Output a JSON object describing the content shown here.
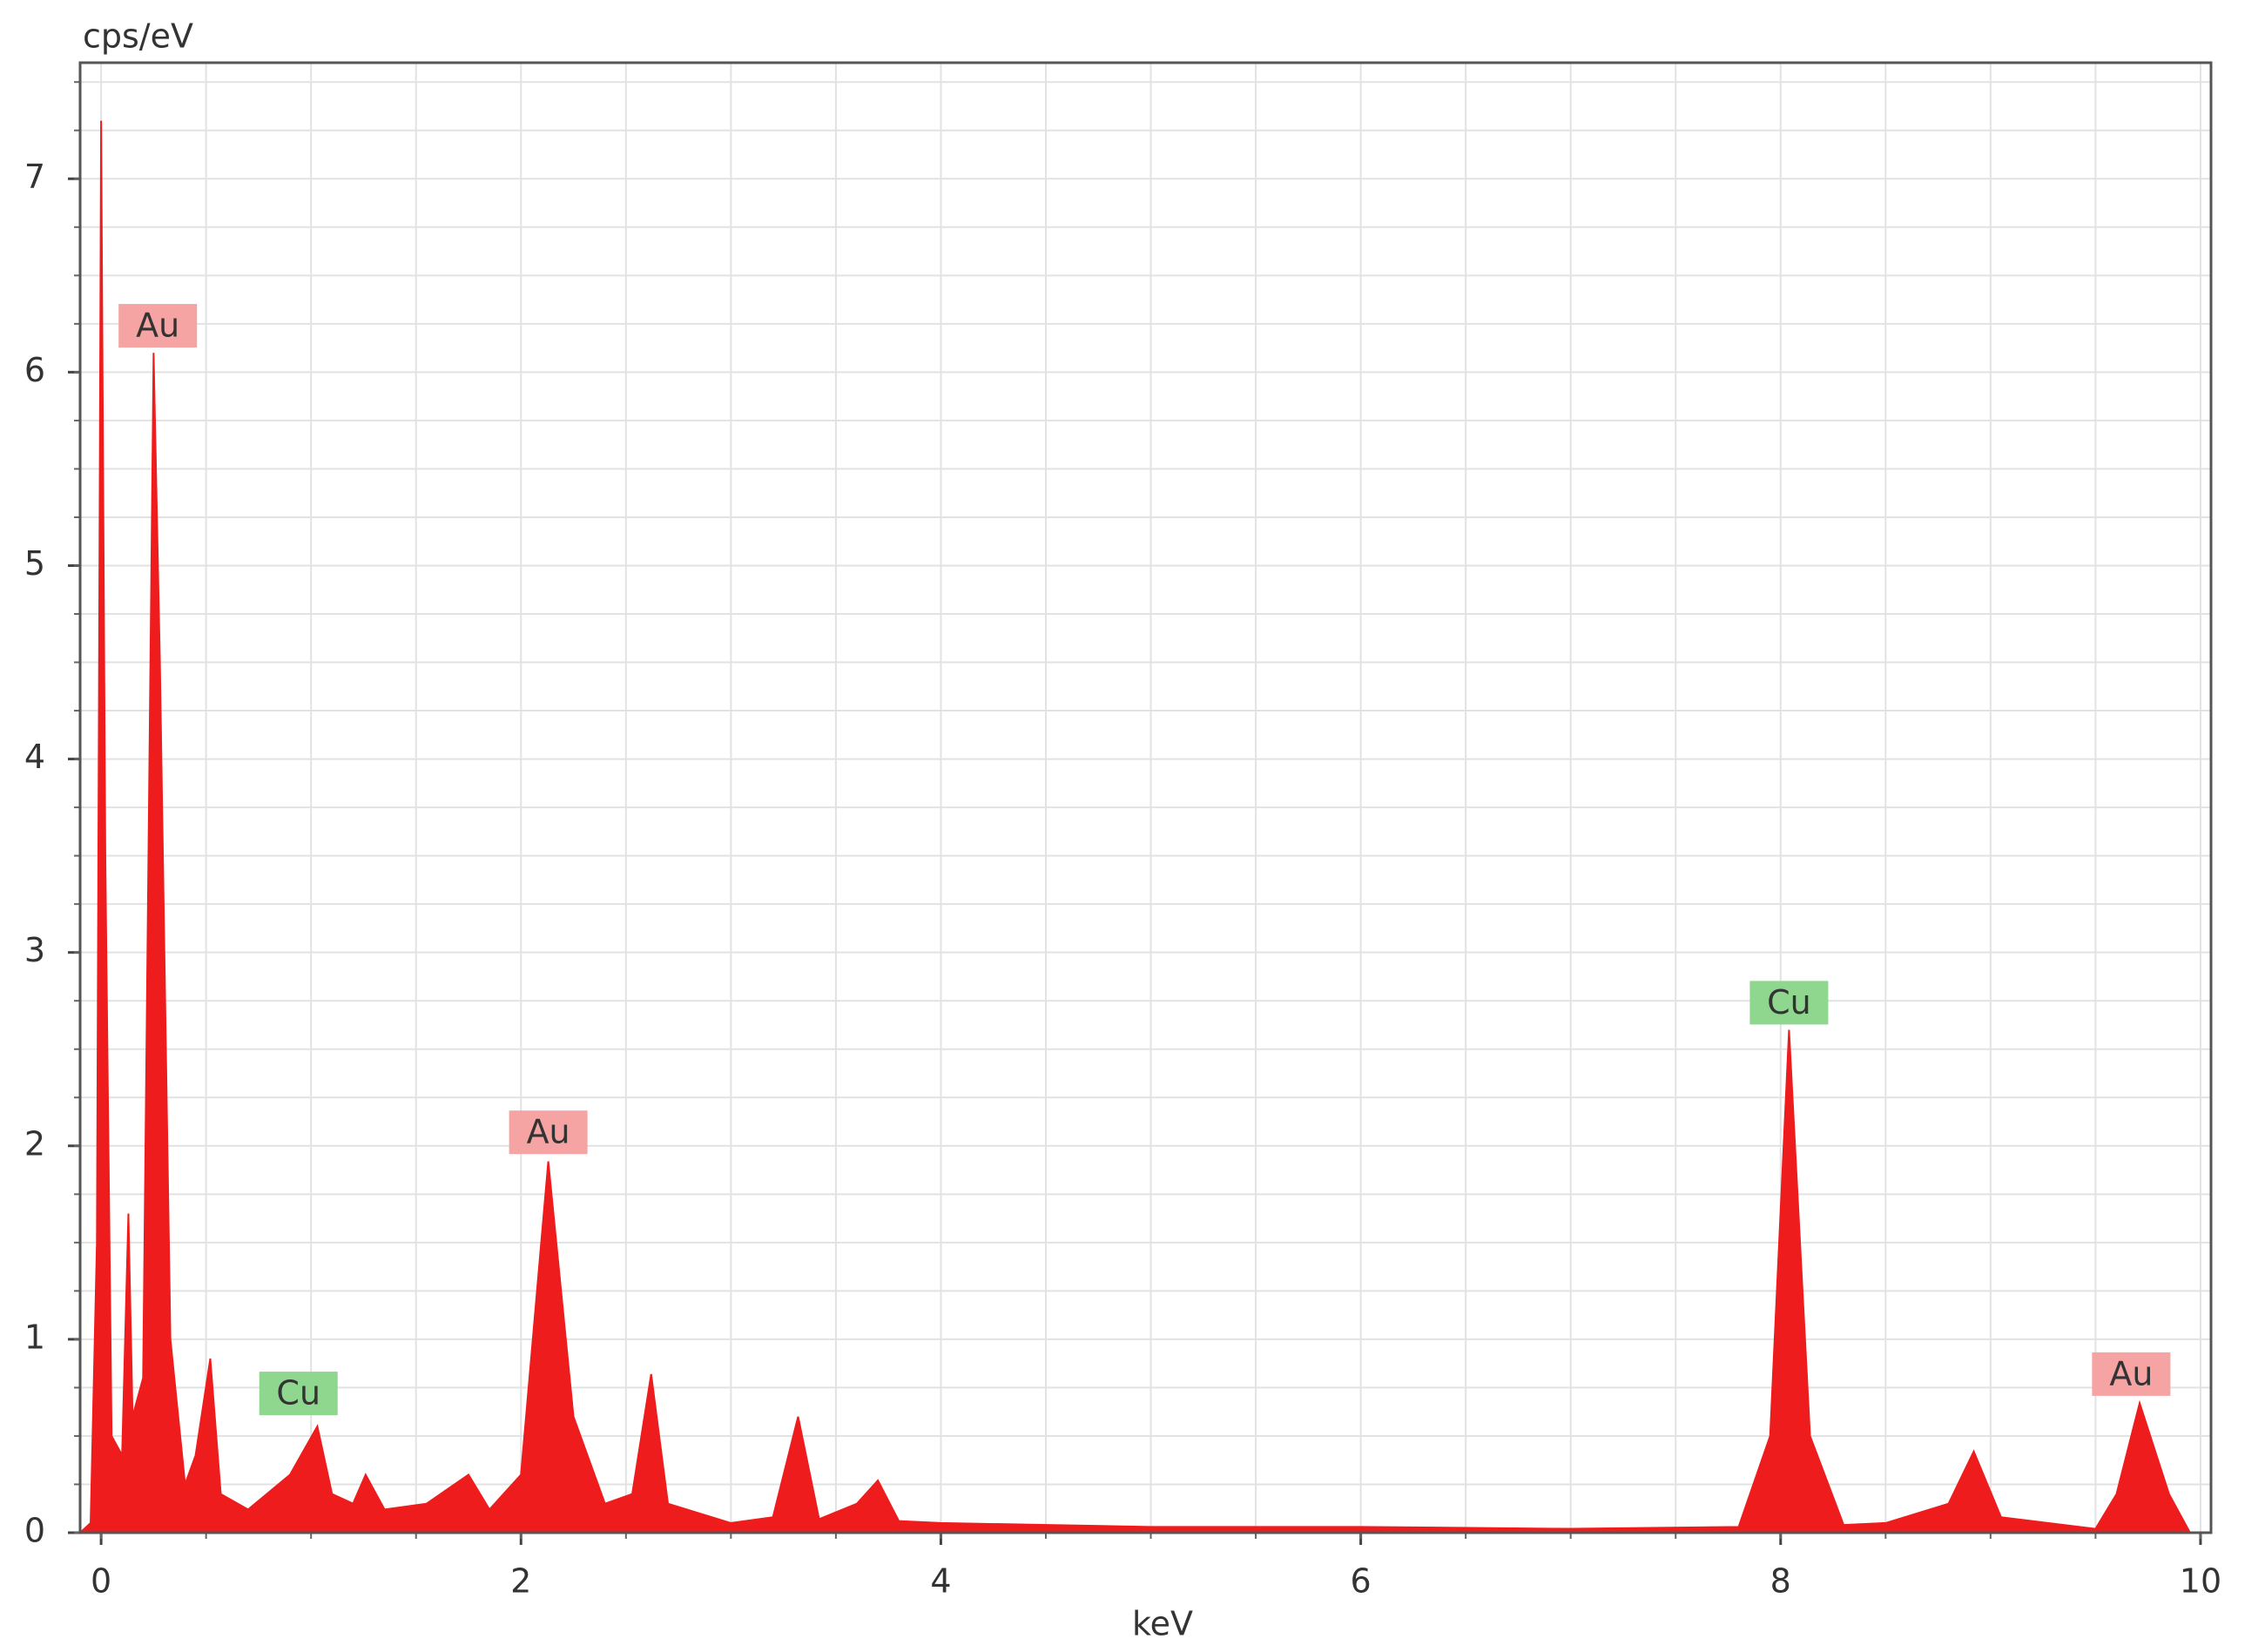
{
  "chart_data": {
    "type": "area",
    "xlabel": "keV",
    "ylabel": "cps/eV",
    "color": "#ee1c1c",
    "x": [
      -0.1,
      -0.05,
      -0.02,
      0.0,
      0.02,
      0.05,
      0.1,
      0.13,
      0.15,
      0.2,
      0.25,
      0.28,
      0.33,
      0.4,
      0.45,
      0.52,
      0.57,
      0.7,
      0.9,
      1.03,
      1.1,
      1.2,
      1.26,
      1.35,
      1.55,
      1.75,
      1.85,
      2.0,
      2.13,
      2.25,
      2.4,
      2.53,
      2.62,
      2.7,
      2.85,
      3.0,
      3.2,
      3.32,
      3.42,
      3.6,
      3.7,
      3.8,
      4.0,
      5.0,
      6.0,
      7.0,
      7.8,
      7.95,
      8.04,
      8.14,
      8.3,
      8.5,
      8.8,
      8.92,
      9.05,
      9.5,
      9.6,
      9.71,
      9.85,
      9.95
    ],
    "values": [
      0,
      0.05,
      1.5,
      7.3,
      3.5,
      0.5,
      0.4,
      1.65,
      0.6,
      0.8,
      6.1,
      4.5,
      1.0,
      0.25,
      0.4,
      0.9,
      0.2,
      0.12,
      0.3,
      0.55,
      0.2,
      0.15,
      0.3,
      0.12,
      0.15,
      0.3,
      0.12,
      0.3,
      1.92,
      0.6,
      0.15,
      0.2,
      0.82,
      0.15,
      0.1,
      0.05,
      0.08,
      0.6,
      0.07,
      0.15,
      0.27,
      0.06,
      0.05,
      0.03,
      0.03,
      0.02,
      0.03,
      0.5,
      2.6,
      0.5,
      0.04,
      0.05,
      0.15,
      0.42,
      0.08,
      0.02,
      0.2,
      0.67,
      0.2,
      0
    ],
    "xlim": [
      -0.1,
      10.05
    ],
    "ylim": [
      0,
      7.6
    ],
    "xticks": [
      0,
      2,
      4,
      6,
      8,
      10
    ],
    "yticks": [
      0,
      1,
      2,
      3,
      4,
      5,
      6,
      7
    ],
    "xminor_step": 0.5,
    "yminor_step": 0.25,
    "grid": true,
    "annotations": [
      {
        "text": "Au",
        "x": 0.27,
        "y": 6.24,
        "color": "#f5a3a3"
      },
      {
        "text": "Cu",
        "x": 0.94,
        "y": 0.72,
        "color": "#8fd68f"
      },
      {
        "text": "Au",
        "x": 2.13,
        "y": 2.07,
        "color": "#f5a3a3"
      },
      {
        "text": "Cu",
        "x": 8.04,
        "y": 2.74,
        "color": "#8fd68f"
      },
      {
        "text": "Au",
        "x": 9.67,
        "y": 0.82,
        "color": "#f5a3a3"
      }
    ]
  }
}
